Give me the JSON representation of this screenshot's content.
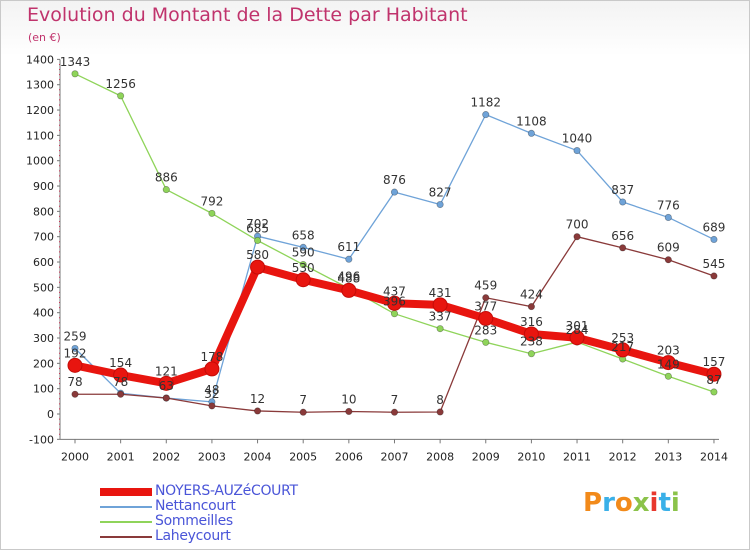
{
  "title": "Evolution du Montant de la Dette par Habitant",
  "subtitle": "(en €)",
  "logo": {
    "text": "Proxiti",
    "colors": [
      "#f28a1a",
      "#3ab0e8",
      "#f28a1a",
      "#8bc34a",
      "#e8382e",
      "#3ab0e8",
      "#8bc34a"
    ]
  },
  "chart_data": {
    "type": "line",
    "x": [
      "2000",
      "2001",
      "2002",
      "2003",
      "2004",
      "2005",
      "2006",
      "2007",
      "2008",
      "2009",
      "2010",
      "2011",
      "2012",
      "2013",
      "2014"
    ],
    "ylim": [
      -100,
      1400
    ],
    "yticks": [
      "-100",
      "0",
      "100",
      "200",
      "300",
      "400",
      "500",
      "600",
      "700",
      "800",
      "900",
      "1000",
      "1100",
      "1200",
      "1300",
      "1400"
    ],
    "grid": false,
    "legend_position": "bottom-left",
    "series": [
      {
        "name": "Nettancourt",
        "color": "#6fa3d8",
        "values": [
          259,
          82,
          63,
          48,
          702,
          658,
          611,
          876,
          827,
          1182,
          1108,
          1040,
          837,
          776,
          689
        ],
        "labels": [
          "259",
          "",
          "",
          "48",
          "702",
          "658",
          "611",
          "876",
          "827",
          "1182",
          "1108",
          "1040",
          "837",
          "776",
          "689"
        ]
      },
      {
        "name": "Sommeilles",
        "color": "#8fd45a",
        "values": [
          1343,
          1256,
          886,
          792,
          685,
          590,
          496,
          396,
          337,
          283,
          238,
          284,
          217,
          149,
          87
        ],
        "labels": [
          "1343",
          "1256",
          "886",
          "792",
          "685",
          "590",
          "496",
          "396",
          "337",
          "283",
          "238",
          "284",
          "217",
          "149",
          "87"
        ]
      },
      {
        "name": "Laheycourt",
        "color": "#8a3a3a",
        "values": [
          78,
          78,
          63,
          32,
          12,
          7,
          10,
          7,
          8,
          459,
          424,
          700,
          656,
          609,
          545
        ],
        "labels": [
          "78",
          "78",
          "63",
          "32",
          "12",
          "7",
          "10",
          "7",
          "8",
          "459",
          "424",
          "700",
          "656",
          "609",
          "545"
        ]
      },
      {
        "name": "NOYERS-AUZéCOURT",
        "color": "#e8150f",
        "values": [
          192,
          154,
          121,
          178,
          580,
          530,
          488,
          437,
          431,
          377,
          316,
          301,
          253,
          203,
          157
        ],
        "labels": [
          "192",
          "154",
          "121",
          "178",
          "580",
          "530",
          "488",
          "437",
          "431",
          "377",
          "316",
          "301",
          "253",
          "203",
          "157"
        ]
      }
    ]
  },
  "legend": [
    {
      "label": "NOYERS-AUZéCOURT",
      "color": "#e8150f"
    },
    {
      "label": "Nettancourt",
      "color": "#6fa3d8"
    },
    {
      "label": "Sommeilles",
      "color": "#8fd45a"
    },
    {
      "label": "Laheycourt",
      "color": "#8a3a3a"
    }
  ]
}
